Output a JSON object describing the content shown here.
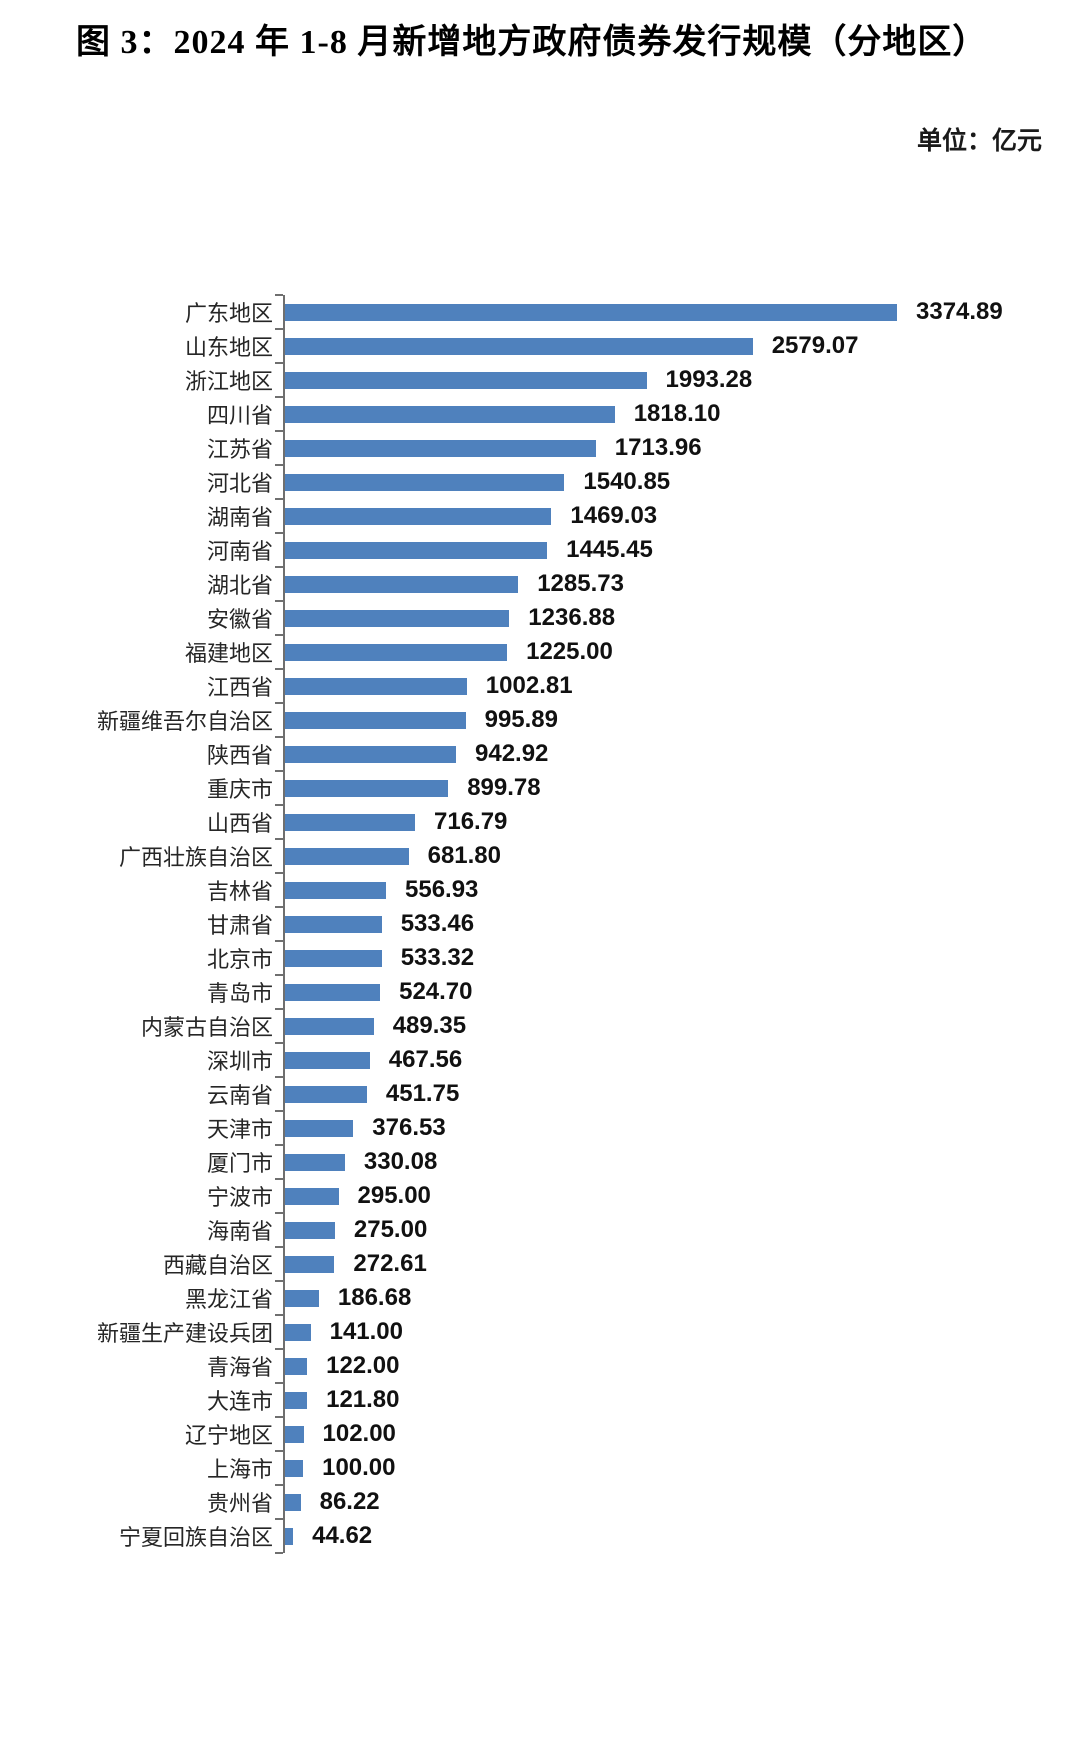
{
  "title": "图 3：2024 年 1-8 月新增地方政府债券发行规模（分地区）",
  "unit_label": "单位：亿元",
  "colors": {
    "bar": "#4f81bd",
    "axis": "#6f6f6f",
    "background": "#ffffff",
    "text": "#111111"
  },
  "chart_data": {
    "type": "bar",
    "orientation": "horizontal",
    "title": "图 3：2024 年 1-8 月新增地方政府债券发行规模（分地区）",
    "unit": "亿元",
    "legend": false,
    "grid": false,
    "value_axis_visible": false,
    "xlim": [
      0,
      3374.89
    ],
    "sort": "descending",
    "categories": [
      "广东地区",
      "山东地区",
      "浙江地区",
      "四川省",
      "江苏省",
      "河北省",
      "湖南省",
      "河南省",
      "湖北省",
      "安徽省",
      "福建地区",
      "江西省",
      "新疆维吾尔自治区",
      "陕西省",
      "重庆市",
      "山西省",
      "广西壮族自治区",
      "吉林省",
      "甘肃省",
      "北京市",
      "青岛市",
      "内蒙古自治区",
      "深圳市",
      "云南省",
      "天津市",
      "厦门市",
      "宁波市",
      "海南省",
      "西藏自治区",
      "黑龙江省",
      "新疆生产建设兵团",
      "青海省",
      "大连市",
      "辽宁地区",
      "上海市",
      "贵州省",
      "宁夏回族自治区"
    ],
    "values": [
      3374.89,
      2579.07,
      1993.28,
      1818.1,
      1713.96,
      1540.85,
      1469.03,
      1445.45,
      1285.73,
      1236.88,
      1225.0,
      1002.81,
      995.89,
      942.92,
      899.78,
      716.79,
      681.8,
      556.93,
      533.46,
      533.32,
      524.7,
      489.35,
      467.56,
      451.75,
      376.53,
      330.08,
      295.0,
      275.0,
      272.61,
      186.68,
      141.0,
      122.0,
      121.8,
      102.0,
      100.0,
      86.22,
      44.62
    ],
    "value_labels": [
      "3374.89",
      "2579.07",
      "1993.28",
      "1818.10",
      "1713.96",
      "1540.85",
      "1469.03",
      "1445.45",
      "1285.73",
      "1236.88",
      "1225.00",
      "1002.81",
      "995.89",
      "942.92",
      "899.78",
      "716.79",
      "681.80",
      "556.93",
      "533.46",
      "533.32",
      "524.70",
      "489.35",
      "467.56",
      "451.75",
      "376.53",
      "330.08",
      "295.00",
      "275.00",
      "272.61",
      "186.68",
      "141.00",
      "122.00",
      "121.80",
      "102.00",
      "100.00",
      "86.22",
      "44.62"
    ],
    "bar_color": "#4f81bd"
  }
}
